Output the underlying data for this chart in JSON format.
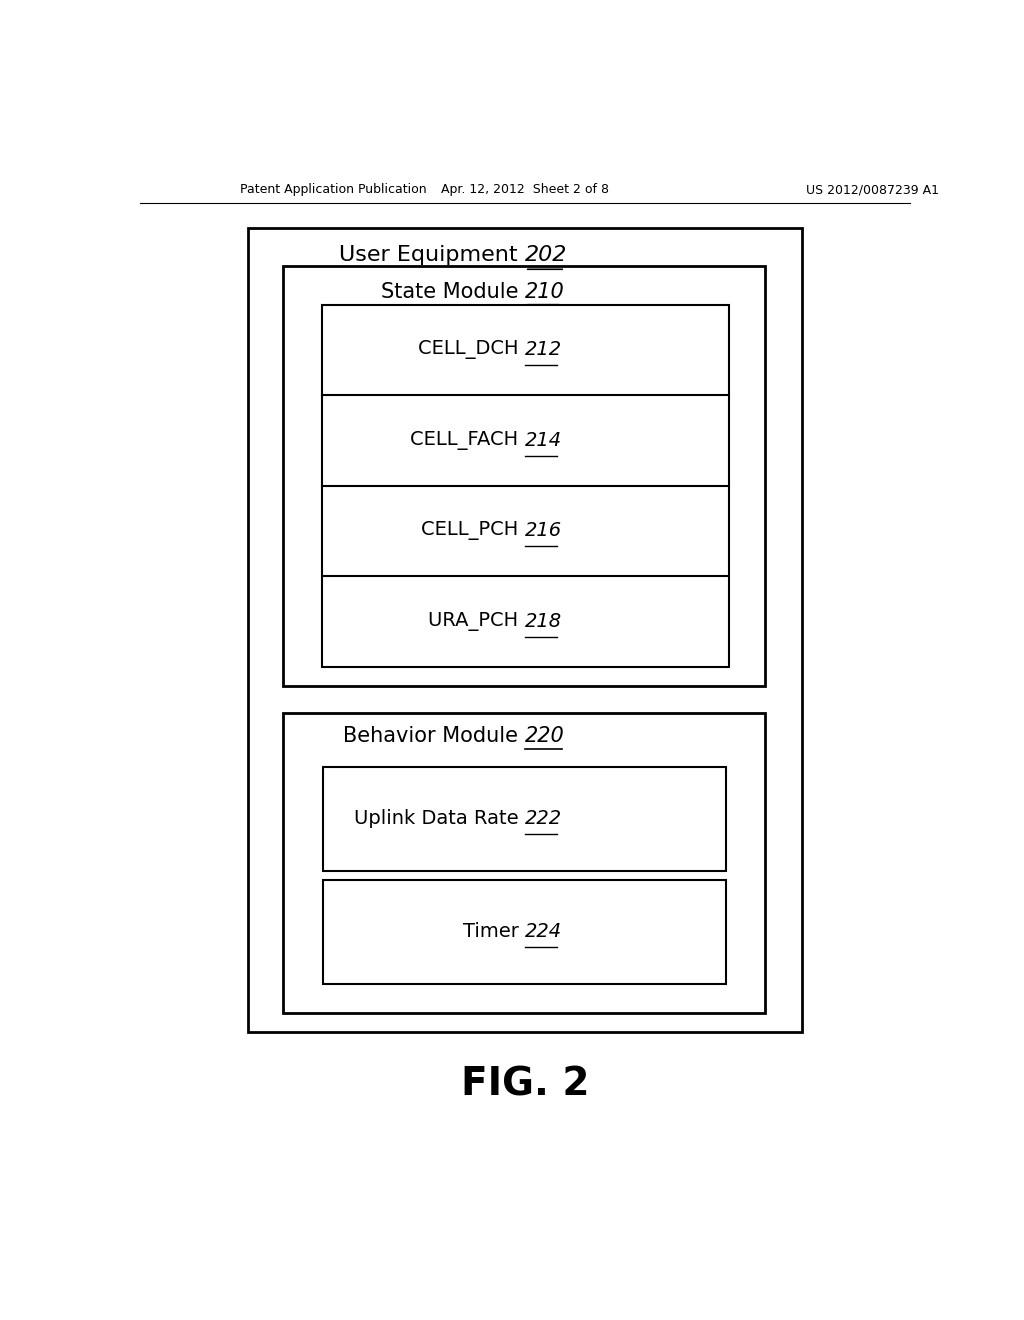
{
  "background_color": "#ffffff",
  "header_left": "Patent Application Publication",
  "header_center": "Apr. 12, 2012  Sheet 2 of 8",
  "header_right": "US 2012/0087239 A1",
  "figure_label": "FIG. 2",
  "outer_box_label": "User Equipment",
  "outer_box_number": "202",
  "state_module_label": "State Module",
  "state_module_number": "210",
  "behavior_module_label": "Behavior Module",
  "behavior_module_number": "220",
  "state_items": [
    {
      "label": "CELL_DCH",
      "number": "212"
    },
    {
      "label": "CELL_FACH",
      "number": "214"
    },
    {
      "label": "CELL_PCH",
      "number": "216"
    },
    {
      "label": "URA_PCH",
      "number": "218"
    }
  ],
  "behavior_items": [
    {
      "label": "Uplink Data Rate",
      "number": "222"
    },
    {
      "label": "Timer",
      "number": "224"
    }
  ],
  "font_color": "#000000",
  "box_edge_color": "#000000",
  "box_fill_color": "#ffffff"
}
